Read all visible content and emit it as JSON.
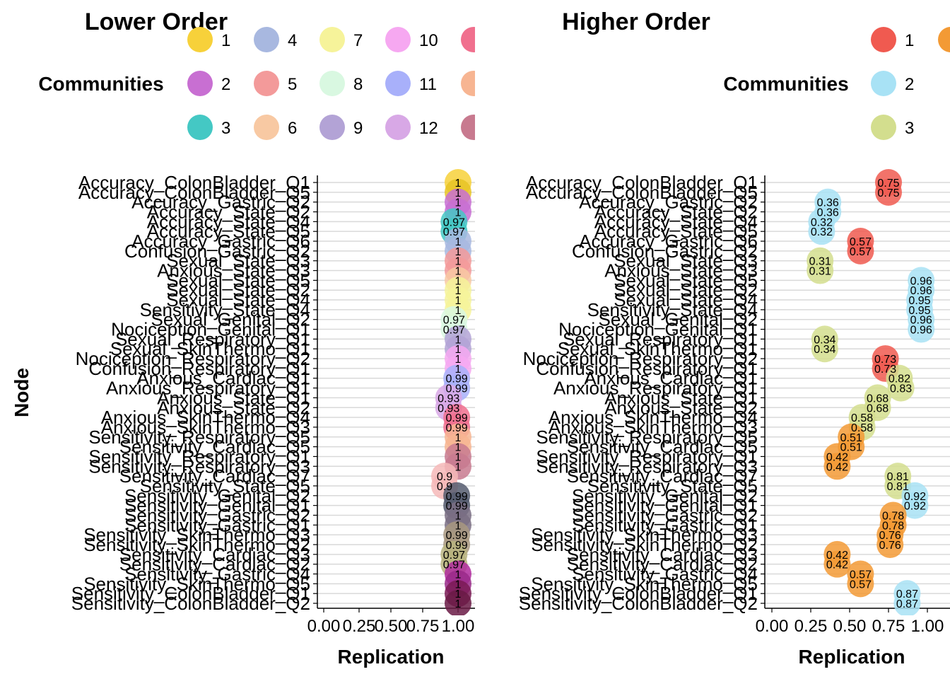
{
  "chart_data": [
    {
      "type": "scatter",
      "title": "Lower Order",
      "xlabel": "Replication",
      "ylabel": "Node",
      "xlim": [
        0,
        1
      ],
      "x_ticks": [
        "0.00",
        "0.25",
        "0.50",
        "0.75",
        "1.00"
      ],
      "legend": {
        "title": "Communities",
        "entries": [
          "1",
          "4",
          "7",
          "10",
          "",
          "2",
          "5",
          "8",
          "11",
          "",
          "3",
          "6",
          "9",
          "12",
          ""
        ],
        "colors": [
          "#F7D13A",
          "#A8B8E0",
          "#F6F39A",
          "#F6A8F1",
          "#F0708E",
          "#C86FD2",
          "#F39A9A",
          "#D9F8E1",
          "#A8B0FA",
          "#F7B592",
          "#44C8C4",
          "#F8C9A3",
          "#B3A3D6",
          "#D8A8E6",
          "#C87A8F"
        ]
      },
      "nodes": [
        "Accuracy_ColonBladder_Q1",
        "Accuracy_ColonBladder_Q5",
        "Accuracy_Gastric_Q2",
        "Accuracy_State_Q2",
        "Accuracy_State_Q4",
        "Accuracy_State_Q5",
        "Accuracy_Gastric_Q6",
        "Confusion_Gastric_Q2",
        "Sexual_State_Q3",
        "Anxious_State_Q3",
        "Sexual_State_Q5",
        "Sexual_State_Q2",
        "Sexual_State_Q4",
        "Sensitivity_State_Q4",
        "Sexual_Genital_Q2",
        "Nociception_Genital_Q1",
        "Sexual_Respiratory_Q1",
        "Sexual_SkinThermo_Q1",
        "Nociception_Respiratory_Q2",
        "Confusion_Respiratory_Q1",
        "Anxious_Cardiac_Q1",
        "Anxious_Respiratory_Q1",
        "Anxious_State_Q1",
        "Anxious_State_Q2",
        "Anxious_SkinThermo_Q4",
        "Anxious_SkinThermo_Q3",
        "Sensitivity_Respiratory_Q5",
        "Sensitivity_Cardiac_Q5",
        "Sensitivity_Respiratory_Q1",
        "Sensitivity_Respiratory_Q3",
        "Sensitivity_Cardiac_Q7",
        "Sensitivity_State_Q5",
        "Sensitivity_Genital_Q2",
        "Sensitivity_Genital_Q1",
        "Sensitivity_Gastric_Q2",
        "Sensitivity_Gastric_Q1",
        "Sensitivity_SkinThermo_Q3",
        "Sensitivity_SkinThermo_Q2",
        "Sensitivity_Cardiac_Q3",
        "Sensitivity_Cardiac_Q2",
        "Sensitivity_Gastric_Q4",
        "Sensitivity_SkinThermo_Q5",
        "Sensitivity_ColonBladder_Q1",
        "Sensitivity_ColonBladder_Q2"
      ],
      "values": [
        1,
        1,
        1,
        1,
        0.97,
        0.97,
        1,
        1,
        1,
        1,
        1,
        1,
        1,
        1,
        0.97,
        0.97,
        1,
        1,
        1,
        1,
        0.99,
        0.99,
        0.93,
        0.93,
        0.99,
        0.99,
        1,
        1,
        1,
        1,
        0.9,
        0.9,
        0.99,
        0.99,
        1,
        1,
        0.99,
        0.99,
        0.97,
        0.97,
        1,
        1,
        1,
        1
      ],
      "labels": [
        "1",
        "1",
        "1",
        "1",
        "0.97",
        "0.97",
        "1",
        "1",
        "1",
        "1",
        "1",
        "1",
        "1",
        "1",
        "0.97",
        "0.97",
        "1",
        "1",
        "1",
        "1",
        "0.99",
        "0.99",
        "0.93",
        "0.93",
        "0.99",
        "0.99",
        "1",
        "1",
        "1",
        "1",
        "0.9",
        "0.9",
        "0.99",
        "0.99",
        "1",
        "1",
        "0.99",
        "0.99",
        "0.97",
        "0.97",
        "1",
        "1",
        "1",
        "1"
      ],
      "point_colors": [
        "#F7D13A",
        "#E8C424",
        "#C86FD2",
        "#C86FD2",
        "#44C8C4",
        "#44C8C4",
        "#A8B8E0",
        "#A8B8E0",
        "#F39A9A",
        "#F39A9A",
        "#F8C9A3",
        "#F6F39A",
        "#F6F39A",
        "#F6F39A",
        "#D9F8E1",
        "#D9F8E1",
        "#B3A3D6",
        "#B3A3D6",
        "#F6A8F1",
        "#F6A8F1",
        "#A8B0FA",
        "#A8B0FA",
        "#D8A8E6",
        "#D8A8E6",
        "#F0708E",
        "#F0708E",
        "#F7B592",
        "#F7B592",
        "#C87A8F",
        "#C87A8F",
        "#F6B8B8",
        "#F6B8B8",
        "#555C6E",
        "#555C6E",
        "#7A6E84",
        "#7A6E84",
        "#A89880",
        "#A89880",
        "#B8B480",
        "#B8B480",
        "#B02A9E",
        "#9A2A8A",
        "#7A1A55",
        "#6A1A45"
      ]
    },
    {
      "type": "scatter",
      "title": "Higher Order",
      "xlabel": "Replication",
      "ylabel": "",
      "xlim": [
        0,
        1
      ],
      "x_ticks": [
        "0.00",
        "0.25",
        "0.50",
        "0.75",
        "1.00"
      ],
      "legend": {
        "title": "Communities",
        "entries": [
          "1",
          "",
          "2",
          "3"
        ],
        "colors": [
          "#F05A50",
          "#F39A35",
          "#A8E2F5",
          "#D3DE8E"
        ]
      },
      "nodes": [
        "Accuracy_ColonBladder_Q1",
        "Accuracy_ColonBladder_Q5",
        "Accuracy_Gastric_Q2",
        "Accuracy_State_Q2",
        "Accuracy_State_Q4",
        "Accuracy_State_Q5",
        "Accuracy_Gastric_Q6",
        "Confusion_Gastric_Q2",
        "Sexual_State_Q3",
        "Anxious_State_Q3",
        "Sexual_State_Q5",
        "Sexual_State_Q2",
        "Sexual_State_Q4",
        "Sensitivity_State_Q4",
        "Sexual_Genital_Q2",
        "Nociception_Genital_Q1",
        "Sexual_Respiratory_Q1",
        "Sexual_SkinThermo_Q1",
        "Nociception_Respiratory_Q2",
        "Confusion_Respiratory_Q1",
        "Anxious_Cardiac_Q1",
        "Anxious_Respiratory_Q1",
        "Anxious_State_Q1",
        "Anxious_State_Q2",
        "Anxious_SkinThermo_Q4",
        "Anxious_SkinThermo_Q3",
        "Sensitivity_Respiratory_Q5",
        "Sensitivity_Cardiac_Q5",
        "Sensitivity_Respiratory_Q1",
        "Sensitivity_Respiratory_Q3",
        "Sensitivity_Cardiac_Q7",
        "Sensitivity_State_Q5",
        "Sensitivity_Genital_Q2",
        "Sensitivity_Genital_Q1",
        "Sensitivity_Gastric_Q2",
        "Sensitivity_Gastric_Q1",
        "Sensitivity_SkinThermo_Q3",
        "Sensitivity_SkinThermo_Q2",
        "Sensitivity_Cardiac_Q3",
        "Sensitivity_Cardiac_Q2",
        "Sensitivity_Gastric_Q4",
        "Sensitivity_SkinThermo_Q5",
        "Sensitivity_ColonBladder_Q1",
        "Sensitivity_ColonBladder_Q2"
      ],
      "values": [
        0.75,
        0.75,
        0.36,
        0.36,
        0.32,
        0.32,
        0.57,
        0.57,
        0.31,
        0.31,
        0.96,
        0.96,
        0.95,
        0.95,
        0.96,
        0.96,
        0.34,
        0.34,
        0.73,
        0.73,
        0.82,
        0.83,
        0.68,
        0.68,
        0.58,
        0.58,
        0.51,
        0.51,
        0.42,
        0.42,
        0.81,
        0.81,
        0.92,
        0.92,
        0.78,
        0.78,
        0.76,
        0.76,
        0.42,
        0.42,
        0.57,
        0.57,
        0.87,
        0.87
      ],
      "labels": [
        "0.75",
        "0.75",
        "0.36",
        "0.36",
        "0.32",
        "0.32",
        "0.57",
        "0.57",
        "0.31",
        "0.31",
        "0.96",
        "0.96",
        "0.95",
        "0.95",
        "0.96",
        "0.96",
        "0.34",
        "0.34",
        "0.73",
        "0.73",
        "0.82",
        "0.83",
        "0.68",
        "0.68",
        "0.58",
        "0.58",
        "0.51",
        "0.51",
        "0.42",
        "0.42",
        "0.81",
        "0.81",
        "0.92",
        "0.92",
        "0.78",
        "0.78",
        "0.76",
        "0.76",
        "0.42",
        "0.42",
        "0.57",
        "0.57",
        "0.87",
        "0.87"
      ],
      "point_colors": [
        "#F05A50",
        "#F05A50",
        "#A8E2F5",
        "#A8E2F5",
        "#A8E2F5",
        "#A8E2F5",
        "#F05A50",
        "#F05A50",
        "#D3DE8E",
        "#D3DE8E",
        "#A8E2F5",
        "#A8E2F5",
        "#A8E2F5",
        "#A8E2F5",
        "#A8E2F5",
        "#A8E2F5",
        "#D3DE8E",
        "#D3DE8E",
        "#F05A50",
        "#F05A50",
        "#D3DE8E",
        "#D3DE8E",
        "#D3DE8E",
        "#D3DE8E",
        "#D3DE8E",
        "#D3DE8E",
        "#F39A35",
        "#F39A35",
        "#F39A35",
        "#F39A35",
        "#D3DE8E",
        "#D3DE8E",
        "#A8E2F5",
        "#A8E2F5",
        "#F39A35",
        "#F39A35",
        "#F39A35",
        "#F39A35",
        "#F39A35",
        "#F39A35",
        "#F39A35",
        "#F39A35",
        "#A8E2F5",
        "#A8E2F5"
      ]
    }
  ]
}
